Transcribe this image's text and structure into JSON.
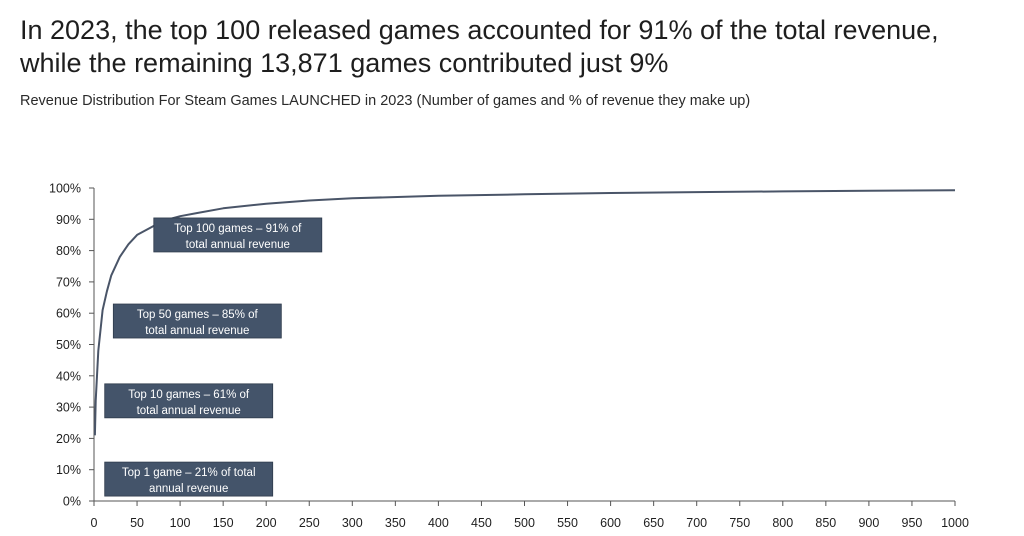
{
  "headline": {
    "line1": "In 2023, the top 100 released games accounted for 91% of the total revenue,",
    "line2": "while the remaining 13,871 games contributed just 9%"
  },
  "subtitle": "Revenue Distribution For Steam Games LAUNCHED in 2023 (Number of games and % of revenue they make up)",
  "colors": {
    "line": "#4a5568",
    "annotation_bg": "#44546a",
    "axis": "#555555"
  },
  "chart_data": {
    "type": "line",
    "title": "",
    "xlabel": "",
    "ylabel": "",
    "xlim": [
      0,
      1000
    ],
    "ylim": [
      0,
      100
    ],
    "grid": false,
    "x_ticks": [
      "0",
      "50",
      "100",
      "150",
      "200",
      "250",
      "300",
      "350",
      "400",
      "450",
      "500",
      "550",
      "600",
      "650",
      "700",
      "750",
      "800",
      "850",
      "900",
      "950",
      "1000"
    ],
    "y_ticks": [
      "0%",
      "10%",
      "20%",
      "30%",
      "40%",
      "50%",
      "60%",
      "70%",
      "80%",
      "90%",
      "100%"
    ],
    "series": [
      {
        "x": [
          1,
          2,
          5,
          10,
          15,
          20,
          30,
          40,
          50,
          60,
          70,
          80,
          100,
          120,
          150,
          200,
          250,
          300,
          400,
          500,
          600,
          700,
          800,
          900,
          1000
        ],
        "y": [
          21,
          32,
          48,
          61,
          67,
          72,
          78,
          82,
          85,
          86.5,
          88,
          89.5,
          91,
          92,
          93.5,
          95,
          96,
          96.7,
          97.5,
          98,
          98.4,
          98.7,
          98.9,
          99.1,
          99.3
        ]
      }
    ],
    "annotations": [
      {
        "text_line1": "Top 100 games – 91% of",
        "text_line2": "total annual revenue",
        "x": 167,
        "y": 85
      },
      {
        "text_line1": "Top 50 games – 85% of",
        "text_line2": "total annual revenue",
        "x": 120,
        "y": 57.5
      },
      {
        "text_line1": "Top 10 games – 61% of",
        "text_line2": "total annual revenue",
        "x": 110,
        "y": 32
      },
      {
        "text_line1": "Top 1 game – 21% of total",
        "text_line2": "annual revenue",
        "x": 110,
        "y": 7
      }
    ]
  }
}
